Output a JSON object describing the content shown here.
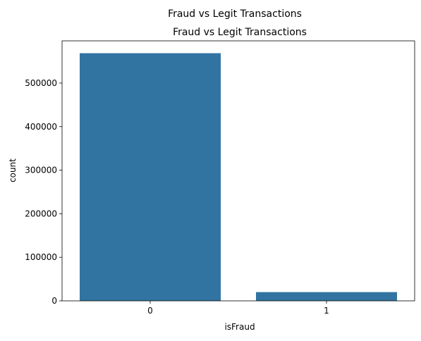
{
  "figure": {
    "suptitle": "Fraud vs Legit Transactions"
  },
  "chart_data": {
    "type": "bar",
    "title": "Fraud vs Legit Transactions",
    "xlabel": "isFraud",
    "ylabel": "count",
    "categories": [
      "0",
      "1"
    ],
    "values": [
      568630,
      20100
    ],
    "ylim": [
      0,
      597000
    ],
    "yticks": [
      0,
      100000,
      200000,
      300000,
      400000,
      500000
    ],
    "bar_color": "#3274a1",
    "grid": false,
    "legend": "none"
  }
}
